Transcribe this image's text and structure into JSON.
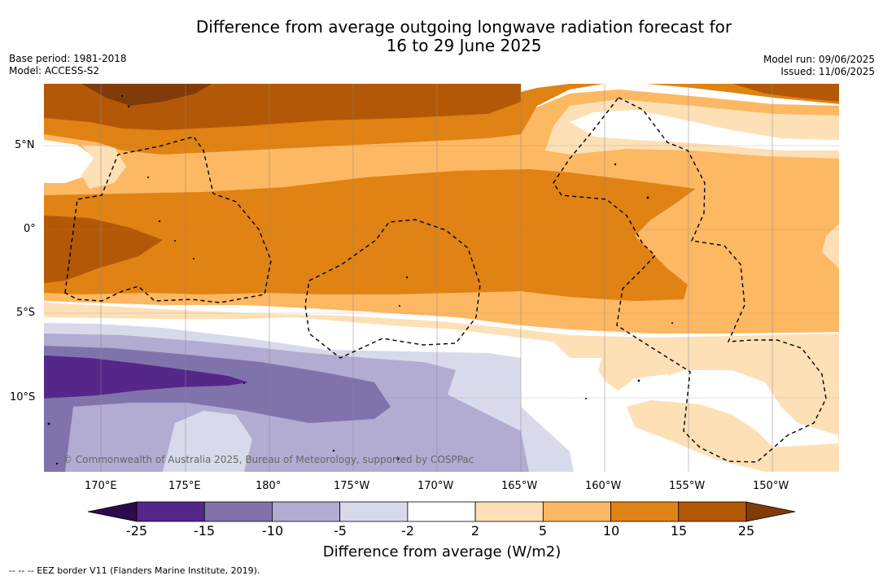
{
  "title": {
    "line1": "Difference from average outgoing longwave radiation forecast for",
    "line2": "16 to 29 June 2025"
  },
  "meta": {
    "base_period": "Base period: 1981-2018",
    "model": "Model: ACCESS-S2",
    "model_run": "Model run: 09/06/2025",
    "issued": "Issued: 11/06/2025"
  },
  "axes": {
    "lat_labels": [
      "5°N",
      "0°",
      "5°S",
      "10°S"
    ],
    "lon_labels": [
      "170°E",
      "175°E",
      "180°",
      "175°W",
      "170°W",
      "165°W",
      "160°W",
      "155°W",
      "150°W"
    ]
  },
  "colorbar": {
    "title": "Difference from average (W/m2)",
    "ticks": [
      "-25",
      "-15",
      "-10",
      "-5",
      "-2",
      "2",
      "5",
      "10",
      "15",
      "25"
    ],
    "colors": [
      "#2d0a4e",
      "#542788",
      "#8073ac",
      "#b2abd2",
      "#d8daeb",
      "#ffffff",
      "#fee0b6",
      "#fdb863",
      "#e08214",
      "#b35806",
      "#7f3b08"
    ]
  },
  "copyright": "© Commonwealth of Australia 2025, Bureau of Meteorology, supported by COSPPac",
  "footnote": "--  --  -- EEZ border V11 (Flanders Marine Institute, 2019)."
}
